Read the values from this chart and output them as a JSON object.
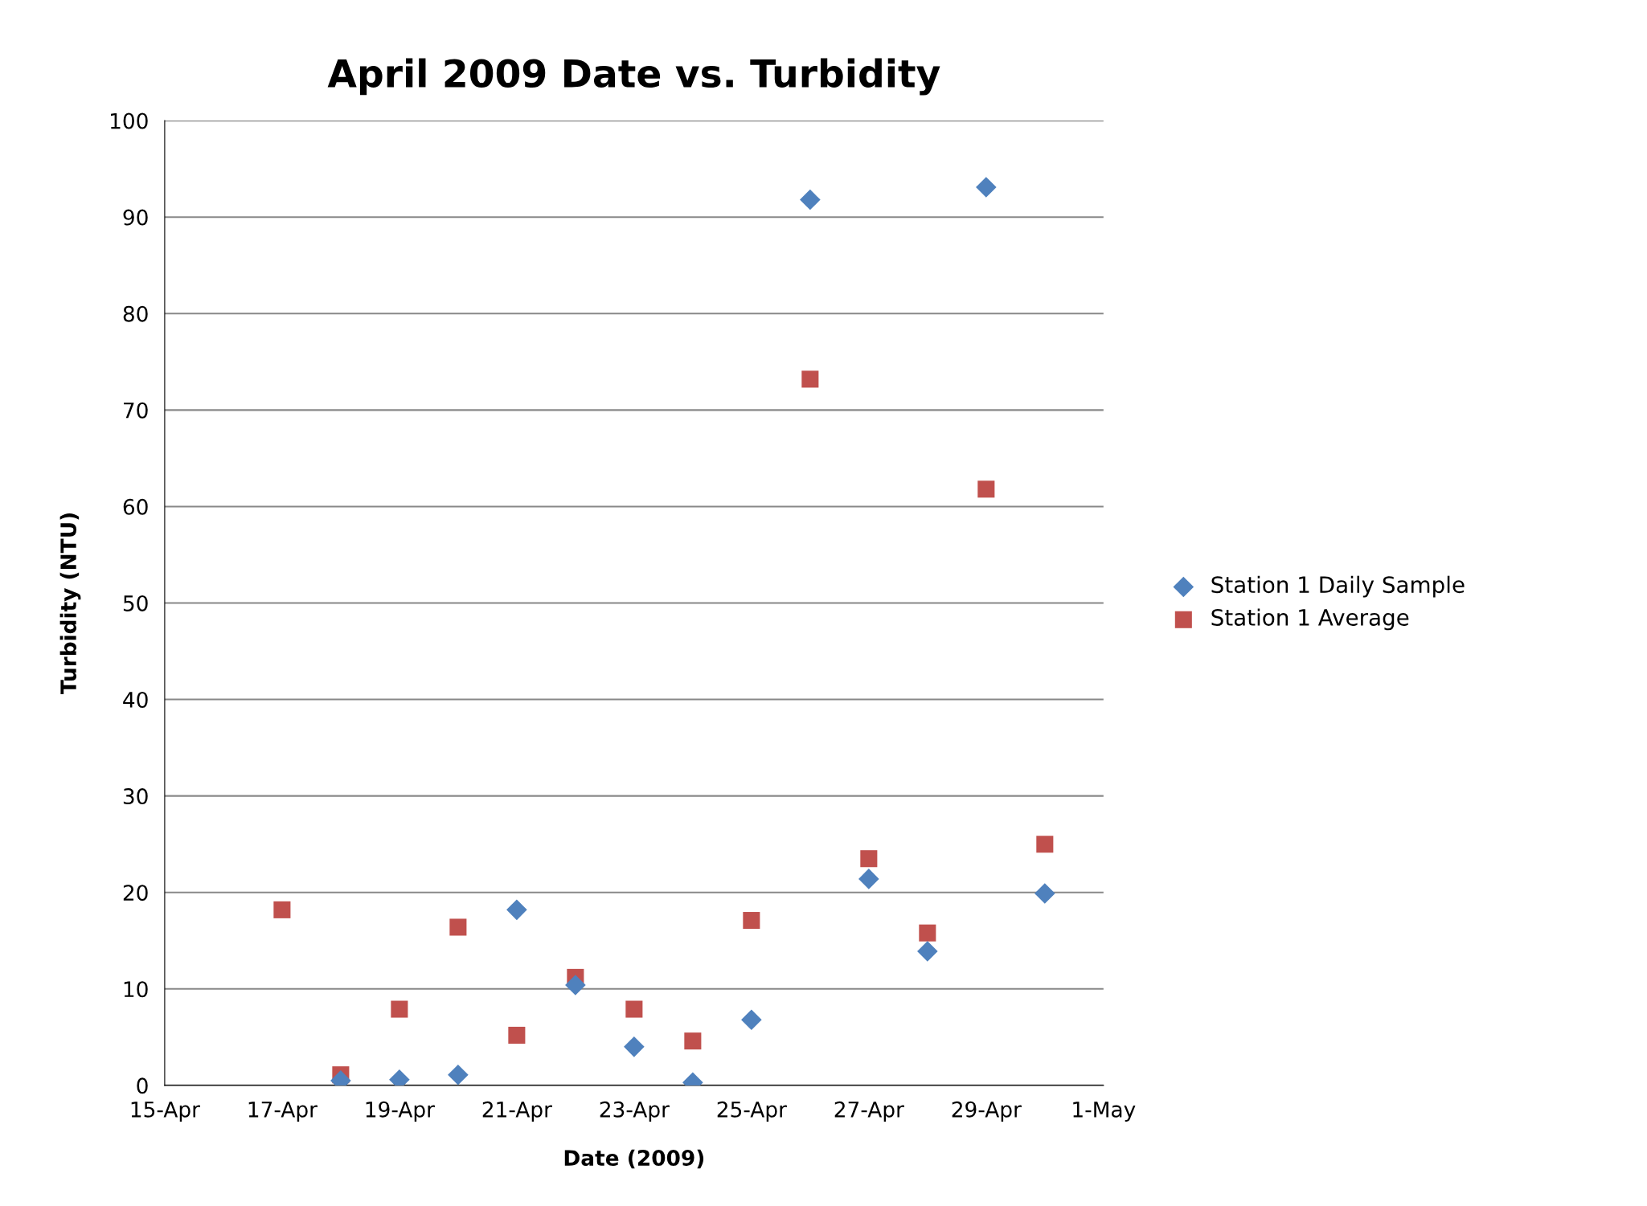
{
  "chart_data": {
    "type": "scatter",
    "title": "April 2009 Date vs. Turbidity",
    "xlabel": "Date (2009)",
    "ylabel": "Turbidity (NTU)",
    "xlim": [
      "2009-04-15",
      "2009-05-01"
    ],
    "xticks": [
      {
        "value": "2009-04-15",
        "label": "15-Apr"
      },
      {
        "value": "2009-04-17",
        "label": "17-Apr"
      },
      {
        "value": "2009-04-19",
        "label": "19-Apr"
      },
      {
        "value": "2009-04-21",
        "label": "21-Apr"
      },
      {
        "value": "2009-04-23",
        "label": "23-Apr"
      },
      {
        "value": "2009-04-25",
        "label": "25-Apr"
      },
      {
        "value": "2009-04-27",
        "label": "27-Apr"
      },
      {
        "value": "2009-04-29",
        "label": "29-Apr"
      },
      {
        "value": "2009-05-01",
        "label": "1-May"
      }
    ],
    "ylim": [
      0,
      100
    ],
    "yticks": [
      0,
      10,
      20,
      30,
      40,
      50,
      60,
      70,
      80,
      90,
      100
    ],
    "grid": "y",
    "legend": "right",
    "series": [
      {
        "name": "Station 1 Daily Sample",
        "color": "#4f81bd",
        "marker": "diamond",
        "x": [
          "2009-04-18",
          "2009-04-19",
          "2009-04-20",
          "2009-04-21",
          "2009-04-22",
          "2009-04-23",
          "2009-04-24",
          "2009-04-25",
          "2009-04-26",
          "2009-04-27",
          "2009-04-28",
          "2009-04-29",
          "2009-04-30"
        ],
        "values": [
          0.5,
          0.6,
          1.1,
          18.2,
          10.4,
          4.0,
          0.3,
          6.8,
          91.8,
          21.4,
          13.9,
          93.1,
          19.9
        ]
      },
      {
        "name": "Station 1 Average",
        "color": "#c0504d",
        "marker": "square",
        "x": [
          "2009-04-17",
          "2009-04-18",
          "2009-04-19",
          "2009-04-20",
          "2009-04-21",
          "2009-04-22",
          "2009-04-23",
          "2009-04-24",
          "2009-04-25",
          "2009-04-26",
          "2009-04-27",
          "2009-04-28",
          "2009-04-29",
          "2009-04-30"
        ],
        "values": [
          18.2,
          1.1,
          7.9,
          16.4,
          5.2,
          11.2,
          7.9,
          4.6,
          17.1,
          73.2,
          23.5,
          15.8,
          61.8,
          25.0
        ]
      }
    ]
  }
}
